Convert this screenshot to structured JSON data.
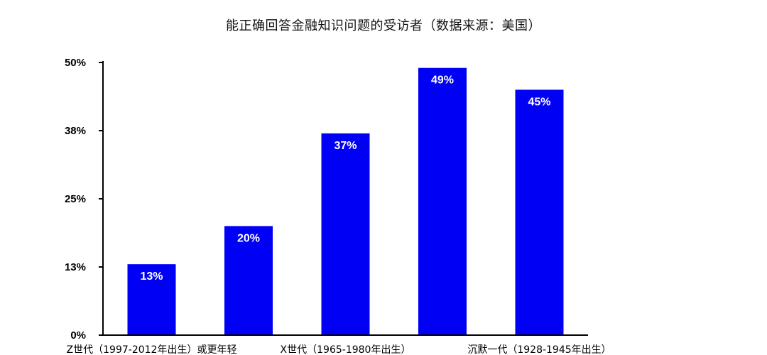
{
  "chart_data": {
    "type": "bar",
    "title": "能正确回答金融知识问题的受访者（数据来源：美国）",
    "xlabel": "",
    "ylabel": "",
    "categories": [
      "Z世代（1997-2012年出生）或更年轻",
      "",
      "X世代（1965-1980年出生）",
      "",
      "沉默一代（1928-1945年出生）"
    ],
    "values": [
      13,
      20,
      37,
      49,
      45
    ],
    "data_labels": [
      "13%",
      "20%",
      "37%",
      "49%",
      "45%"
    ],
    "ylim": [
      0,
      50
    ],
    "yticks": [
      0,
      12.5,
      25,
      37.5,
      50
    ],
    "ytick_labels": [
      "0%",
      "13%",
      "25%",
      "38%",
      "50%"
    ],
    "grid": false,
    "legend": "none",
    "bar_color": "#0000f5",
    "axis_color": "#000000"
  }
}
